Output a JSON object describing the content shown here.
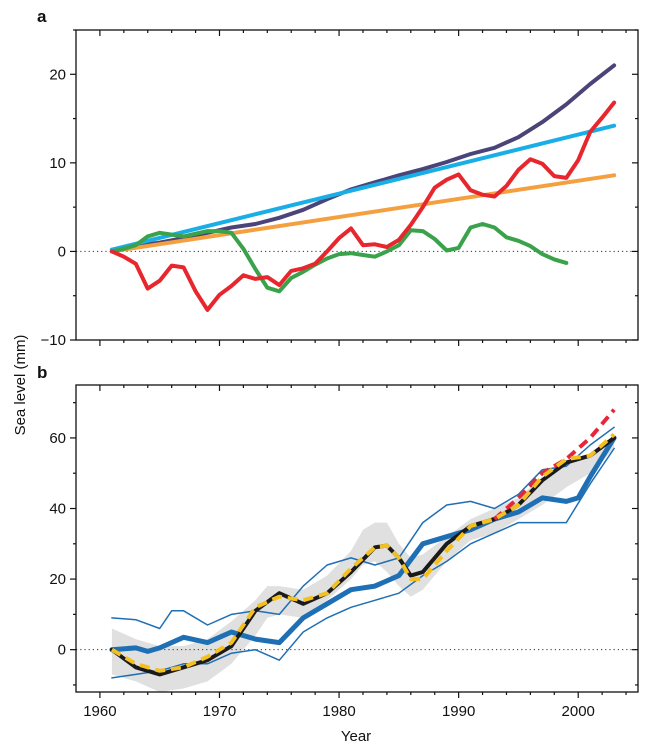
{
  "chart_data": [
    {
      "type": "line",
      "panel_label": "a",
      "xlim": [
        1958,
        2005
      ],
      "ylim": [
        -10,
        25
      ],
      "grid": false,
      "x_ticks": [
        1960,
        1970,
        1980,
        1990,
        2000
      ],
      "x_tick_labels": [
        "",
        "",
        "",
        "",
        ""
      ],
      "y_ticks": [
        -10,
        0,
        10,
        20
      ],
      "y_tick_labels": [
        "−10",
        "0",
        "10",
        "20"
      ],
      "reference_line": 0,
      "series": [
        {
          "color": "#4b4478",
          "style": "solid",
          "x": [
            1961,
            1963,
            1965,
            1967,
            1969,
            1971,
            1973,
            1975,
            1977,
            1979,
            1981,
            1983,
            1985,
            1987,
            1989,
            1991,
            1993,
            1995,
            1997,
            1999,
            2001,
            2003
          ],
          "y": [
            0.2,
            0.6,
            1.0,
            1.5,
            2.1,
            2.7,
            3.1,
            3.8,
            4.7,
            5.9,
            7.0,
            7.8,
            8.6,
            9.3,
            10.1,
            11.0,
            11.7,
            12.9,
            14.6,
            16.6,
            18.9,
            21.0
          ]
        },
        {
          "color": "#19aee6",
          "style": "solid",
          "x": [
            1961,
            2003
          ],
          "y": [
            0.2,
            14.2
          ]
        },
        {
          "color": "#f4a040",
          "style": "solid",
          "x": [
            1961,
            2003
          ],
          "y": [
            0.0,
            8.6
          ]
        },
        {
          "color": "#3aa24a",
          "style": "solid",
          "x": [
            1961,
            1962,
            1963,
            1964,
            1965,
            1966,
            1967,
            1968,
            1969,
            1970,
            1971,
            1972,
            1973,
            1974,
            1975,
            1976,
            1977,
            1978,
            1979,
            1980,
            1981,
            1982,
            1983,
            1984,
            1985,
            1986,
            1987,
            1988,
            1989,
            1990,
            1991,
            1992,
            1993,
            1994,
            1995,
            1996,
            1997,
            1998,
            1999
          ],
          "y": [
            0.0,
            0.3,
            0.7,
            1.7,
            2.1,
            1.9,
            1.7,
            2.0,
            2.3,
            2.3,
            2.1,
            0.3,
            -2.0,
            -4.1,
            -4.5,
            -3.0,
            -2.3,
            -1.5,
            -0.8,
            -0.3,
            -0.2,
            -0.4,
            -0.6,
            0.0,
            0.7,
            2.4,
            2.3,
            1.4,
            0.1,
            0.4,
            2.7,
            3.1,
            2.7,
            1.6,
            1.2,
            0.6,
            -0.3,
            -0.9,
            -1.3
          ]
        },
        {
          "color": "#e8262d",
          "style": "solid",
          "x": [
            1961,
            1962,
            1963,
            1964,
            1965,
            1966,
            1967,
            1968,
            1969,
            1970,
            1971,
            1972,
            1973,
            1974,
            1975,
            1976,
            1977,
            1978,
            1979,
            1980,
            1981,
            1982,
            1983,
            1984,
            1985,
            1986,
            1987,
            1988,
            1989,
            1990,
            1991,
            1992,
            1993,
            1994,
            1995,
            1996,
            1997,
            1998,
            1999,
            2000,
            2001,
            2002,
            2003
          ],
          "y": [
            0.0,
            -0.6,
            -1.4,
            -4.2,
            -3.3,
            -1.6,
            -1.8,
            -4.5,
            -6.6,
            -4.9,
            -3.9,
            -2.7,
            -3.1,
            -2.9,
            -3.8,
            -2.2,
            -1.9,
            -1.4,
            0.0,
            1.5,
            2.6,
            0.7,
            0.8,
            0.5,
            1.3,
            3.0,
            5.0,
            7.2,
            8.1,
            8.7,
            6.9,
            6.4,
            6.2,
            7.4,
            9.2,
            10.4,
            9.9,
            8.5,
            8.3,
            10.3,
            13.5,
            15.1,
            16.8
          ]
        }
      ]
    },
    {
      "type": "line",
      "panel_label": "b",
      "xlim": [
        1958,
        2005
      ],
      "ylim": [
        -12,
        75
      ],
      "grid": false,
      "x_ticks": [
        1960,
        1970,
        1980,
        1990,
        2000
      ],
      "x_tick_labels": [
        "1960",
        "1970",
        "1980",
        "1990",
        "2000"
      ],
      "y_ticks": [
        0,
        20,
        40,
        60
      ],
      "y_tick_labels": [
        "0",
        "20",
        "40",
        "60"
      ],
      "reference_line": 0,
      "shared_ylabel": "Sea level (mm)",
      "shared_xlabel": "Year",
      "uncertainty_band": {
        "color": "#e0e0e0",
        "x": [
          1961,
          1963,
          1965,
          1967,
          1969,
          1971,
          1973,
          1974,
          1975,
          1977,
          1979,
          1981,
          1982,
          1983,
          1984,
          1985,
          1986,
          1987,
          1989,
          1991,
          1993,
          1995,
          1997,
          1999,
          2001,
          2003
        ],
        "upper": [
          6,
          3,
          1,
          1,
          3,
          8,
          14,
          18,
          18,
          17,
          21,
          28,
          34,
          36,
          36,
          30,
          26,
          27,
          32,
          37,
          40,
          43,
          49,
          53,
          55,
          60
        ],
        "lower": [
          -7,
          -9,
          -12,
          -11,
          -9,
          -4,
          4,
          9,
          10,
          9,
          14,
          20,
          24,
          25,
          22,
          18,
          15,
          17,
          25,
          31,
          33,
          37,
          41,
          46,
          50,
          57
        ]
      },
      "series": [
        {
          "color": "#1f6fb4",
          "style": "thin",
          "x": [
            1961,
            1963,
            1965,
            1966,
            1967,
            1969,
            1971,
            1973,
            1975,
            1977,
            1979,
            1981,
            1983,
            1985,
            1987,
            1989,
            1991,
            1993,
            1995,
            1997,
            1999,
            2001,
            2003
          ],
          "y": [
            9,
            8.5,
            6,
            11,
            11,
            7,
            10,
            11,
            10,
            18,
            24,
            26,
            24,
            26,
            36,
            41,
            42,
            40,
            44,
            51,
            52,
            58,
            63
          ]
        },
        {
          "color": "#1f6fb4",
          "style": "thin",
          "x": [
            1961,
            1963,
            1965,
            1967,
            1969,
            1971,
            1973,
            1975,
            1977,
            1979,
            1981,
            1983,
            1985,
            1987,
            1989,
            1991,
            1993,
            1995,
            1997,
            1999,
            2001,
            2003
          ],
          "y": [
            -8,
            -7,
            -6,
            -4,
            -4,
            -1,
            0,
            -3,
            5,
            9,
            12,
            14,
            16,
            21,
            25,
            30,
            33,
            36,
            36,
            36,
            47,
            57
          ]
        },
        {
          "color": "#1f6fb4",
          "style": "thick",
          "x": [
            1961,
            1963,
            1964,
            1965,
            1967,
            1969,
            1971,
            1973,
            1975,
            1977,
            1979,
            1981,
            1983,
            1985,
            1987,
            1989,
            1991,
            1993,
            1995,
            1997,
            1999,
            2000,
            2001,
            2003
          ],
          "y": [
            0,
            0.5,
            -0.5,
            0.5,
            3.5,
            2,
            5,
            3,
            2,
            9,
            13,
            17,
            18,
            21,
            30,
            32,
            34,
            37,
            39,
            43,
            42,
            43,
            49,
            60
          ]
        },
        {
          "color": "#1a1a1a",
          "style": "solid",
          "x": [
            1961,
            1963,
            1965,
            1967,
            1969,
            1971,
            1973,
            1975,
            1977,
            1979,
            1981,
            1983,
            1984,
            1985,
            1986,
            1987,
            1989,
            1991,
            1993,
            1995,
            1997,
            1999,
            2001,
            2003
          ],
          "y": [
            0,
            -5,
            -7,
            -5,
            -3,
            1,
            11,
            16,
            13,
            16,
            22,
            29,
            29.5,
            26,
            21,
            22,
            30,
            35,
            37,
            41,
            48,
            53,
            55,
            60
          ]
        },
        {
          "color": "#e8263a",
          "style": "dashed",
          "x": [
            1993,
            1995,
            1997,
            1999,
            2001,
            2003
          ],
          "y": [
            37,
            43,
            50,
            54,
            60,
            68
          ]
        },
        {
          "color": "#f4c020",
          "style": "dashed",
          "x": [
            1961,
            1963,
            1965,
            1967,
            1969,
            1971,
            1973,
            1975,
            1977,
            1979,
            1981,
            1983,
            1984,
            1985,
            1986,
            1987,
            1989,
            1991,
            1993,
            1995,
            1997,
            1999,
            2001,
            2003
          ],
          "y": [
            0,
            -4,
            -6,
            -5,
            -2,
            2,
            12,
            15,
            14,
            16,
            23,
            29,
            29.5,
            26,
            20,
            20,
            28,
            35,
            37,
            41,
            49,
            54,
            55,
            61
          ]
        }
      ]
    }
  ]
}
